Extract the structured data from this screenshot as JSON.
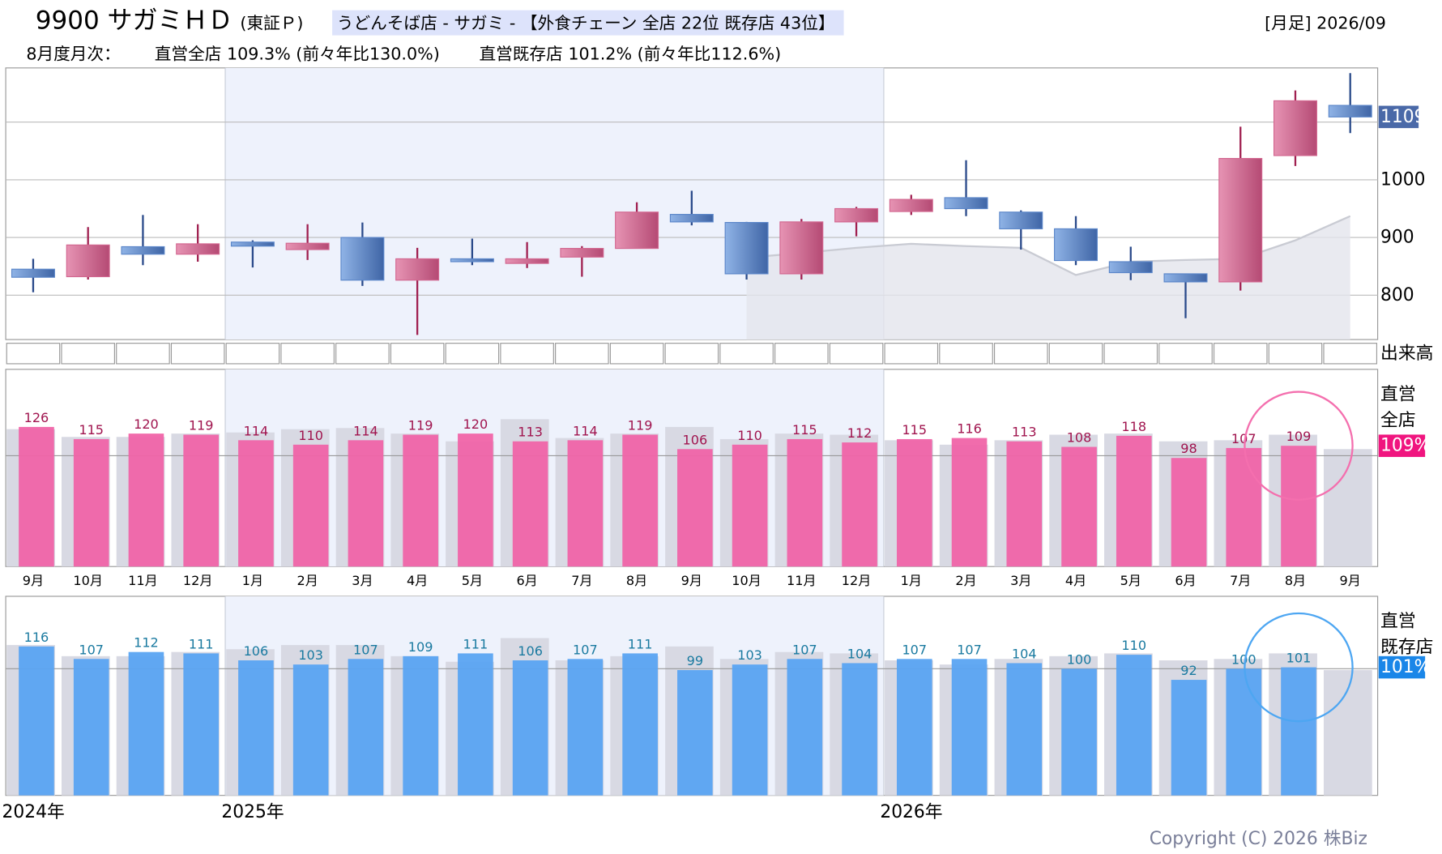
{
  "header": {
    "code_name": "9900 サガミＨＤ",
    "market": "(東証Ｐ)",
    "category": "うどんそば店 - サガミ - 【外食チェーン 全店 22位 既存店 43位】",
    "period": "[月足] 2026/09",
    "monthly_label": "8月度月次：",
    "all_stores": "直営全店 109.3% (前々年比130.0%)",
    "existing_stores": "直営既存店 101.2% (前々年比112.6%)"
  },
  "chart_data": [
    {
      "type": "candlestick",
      "ylim": [
        723,
        1194
      ],
      "yticks": [
        800,
        900,
        1000
      ],
      "extra_grid": [
        1100
      ],
      "last_price": 1109,
      "volume_label": "出来高",
      "up_color": "#d2668f",
      "down_color": "#5b86c9",
      "open": [
        845,
        832,
        884,
        871,
        892,
        879,
        900,
        826,
        863,
        855,
        866,
        881,
        940,
        926,
        837,
        927,
        945,
        969,
        944,
        915,
        858,
        837,
        823,
        1042,
        1129
      ],
      "high": [
        863,
        918,
        939,
        923,
        895,
        923,
        926,
        882,
        898,
        892,
        885,
        961,
        981,
        927,
        932,
        953,
        974,
        1034,
        947,
        937,
        884,
        837,
        1092,
        1155,
        1185
      ],
      "low": [
        805,
        827,
        852,
        858,
        848,
        861,
        816,
        731,
        852,
        847,
        832,
        881,
        921,
        827,
        827,
        902,
        939,
        937,
        879,
        852,
        826,
        760,
        808,
        1024,
        1081
      ],
      "close": [
        831,
        887,
        871,
        889,
        885,
        890,
        826,
        863,
        858,
        863,
        881,
        944,
        927,
        837,
        927,
        950,
        966,
        950,
        915,
        860,
        839,
        823,
        1037,
        1137,
        1109
      ],
      "overlay": [
        null,
        null,
        null,
        null,
        null,
        null,
        null,
        null,
        null,
        null,
        null,
        null,
        null,
        865,
        873,
        882,
        889,
        885,
        882,
        835,
        858,
        861,
        863,
        895,
        937
      ]
    },
    {
      "type": "bar",
      "title_lines": [
        "直営",
        "全店"
      ],
      "badge": "109%",
      "ylim": [
        0,
        178
      ],
      "reference": 100,
      "color": "#f064a8",
      "prior_color": "#d8d9e3",
      "label_color": "#a0144e",
      "badge_color": "#f0157f",
      "circle_color": "#f46fae",
      "categories": [
        "9月",
        "10月",
        "11月",
        "12月",
        "1月",
        "2月",
        "3月",
        "4月",
        "5月",
        "6月",
        "7月",
        "8月",
        "9月",
        "10月",
        "11月",
        "12月",
        "1月",
        "2月",
        "3月",
        "4月",
        "5月",
        "6月",
        "7月",
        "8月",
        "9月"
      ],
      "values": [
        126,
        115,
        120,
        119,
        114,
        110,
        114,
        119,
        120,
        113,
        114,
        119,
        106,
        110,
        115,
        112,
        115,
        116,
        113,
        108,
        118,
        98,
        107,
        109,
        null
      ],
      "prior_values": [
        124,
        117,
        117,
        120,
        121,
        124,
        125,
        120,
        113,
        133,
        116,
        120,
        126,
        115,
        120,
        119,
        114,
        110,
        114,
        119,
        120,
        113,
        114,
        119,
        106
      ]
    },
    {
      "type": "bar",
      "title_lines": [
        "直営",
        "既存店"
      ],
      "badge": "101%",
      "ylim": [
        9,
        152
      ],
      "reference": 100,
      "color": "#5aa4f2",
      "prior_color": "#d8d9e3",
      "label_color": "#1a7aa0",
      "badge_color": "#1a86e8",
      "circle_color": "#4da6f2",
      "years": [
        "2024年",
        null,
        null,
        null,
        "2025年",
        null,
        null,
        null,
        null,
        null,
        null,
        null,
        null,
        null,
        null,
        null,
        "2026年",
        null,
        null,
        null,
        null,
        null,
        null,
        null,
        null
      ],
      "values": [
        116,
        107,
        112,
        111,
        106,
        103,
        107,
        109,
        111,
        106,
        107,
        111,
        99,
        103,
        107,
        104,
        107,
        107,
        104,
        100,
        110,
        92,
        100,
        101,
        null
      ],
      "prior_values": [
        117,
        109,
        109,
        112,
        114,
        117,
        117,
        109,
        105,
        122,
        106,
        109,
        116,
        107,
        112,
        111,
        106,
        103,
        107,
        109,
        111,
        106,
        107,
        111,
        99
      ]
    }
  ],
  "footer": {
    "copyright": "Copyright (C) 2026 株Biz"
  }
}
